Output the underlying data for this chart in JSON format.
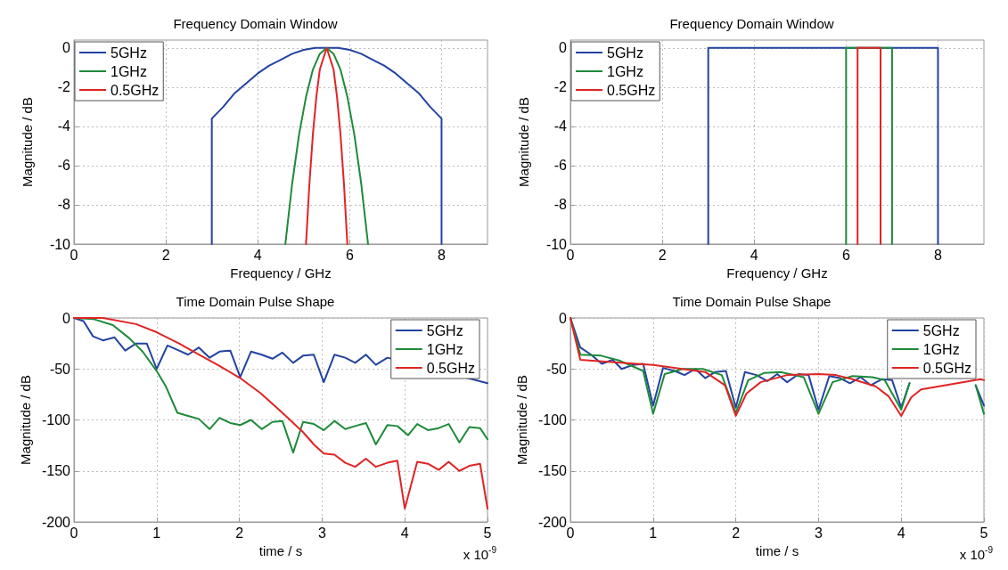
{
  "chart_data": [
    {
      "type": "line",
      "title": "Frequency Domain Window",
      "xlabel": "Frequency / GHz",
      "ylabel": "Magnitude / dB",
      "xlim": [
        0,
        9
      ],
      "xticks": [
        0,
        2,
        4,
        6,
        8
      ],
      "ylim": [
        -10,
        0.4
      ],
      "yticks": [
        -10,
        -8,
        -6,
        -4,
        -2,
        0
      ],
      "grid": true,
      "legend": "top left",
      "marker": "none",
      "line_style": "solid",
      "series": [
        {
          "name": "5GHz",
          "color": "#2343a0",
          "x": [
            3,
            3,
            3.25,
            3.5,
            3.75,
            4,
            4.25,
            4.5,
            4.75,
            5,
            5.25,
            5.5,
            5.75,
            6,
            6.25,
            6.5,
            6.75,
            7,
            7.25,
            7.5,
            7.75,
            8,
            8
          ],
          "values": [
            -10,
            -3.6,
            -3.0,
            -2.3,
            -1.8,
            -1.3,
            -0.9,
            -0.6,
            -0.3,
            -0.1,
            0,
            0,
            0,
            -0.1,
            -0.3,
            -0.6,
            -0.9,
            -1.3,
            -1.8,
            -2.3,
            -3.0,
            -3.6,
            -10
          ]
        },
        {
          "name": "1GHz",
          "color": "#1e8a3a",
          "x": [
            4.6,
            4.75,
            4.9,
            5.05,
            5.2,
            5.35,
            5.5,
            5.65,
            5.8,
            5.95,
            6.1,
            6.25,
            6.4
          ],
          "values": [
            -10,
            -6.9,
            -4.4,
            -2.5,
            -1.1,
            -0.3,
            0,
            -0.3,
            -1.1,
            -2.5,
            -4.4,
            -6.9,
            -10
          ]
        },
        {
          "name": "0.5GHz",
          "color": "#e02424",
          "x": [
            5.05,
            5.125,
            5.2,
            5.275,
            5.35,
            5.5,
            5.65,
            5.725,
            5.8,
            5.875,
            5.95
          ],
          "values": [
            -10,
            -6.9,
            -4.4,
            -2.5,
            -1.1,
            0,
            -1.1,
            -2.5,
            -4.4,
            -6.9,
            -10
          ]
        }
      ]
    },
    {
      "type": "line",
      "title": "Frequency Domain Window",
      "xlabel": "Frequency / GHz",
      "ylabel": "Magnitude / dB",
      "xlim": [
        0,
        9
      ],
      "xticks": [
        0,
        2,
        4,
        6,
        8
      ],
      "ylim": [
        -10,
        0.4
      ],
      "yticks": [
        -10,
        -8,
        -6,
        -4,
        -2,
        0
      ],
      "grid": true,
      "legend": "top left",
      "marker": "none",
      "line_style": "solid",
      "series": [
        {
          "name": "5GHz",
          "color": "#2343a0",
          "x": [
            3,
            3,
            8,
            8
          ],
          "values": [
            -10,
            0,
            0,
            -10
          ]
        },
        {
          "name": "1GHz",
          "color": "#1e8a3a",
          "x": [
            6,
            6,
            7,
            7
          ],
          "values": [
            -10,
            0,
            0,
            -10
          ]
        },
        {
          "name": "0.5GHz",
          "color": "#e02424",
          "x": [
            6.25,
            6.25,
            6.75,
            6.75
          ],
          "values": [
            -10,
            0,
            0,
            -10
          ]
        }
      ]
    },
    {
      "type": "line",
      "title": "Time Domain Pulse Shape",
      "xlabel": "time / s",
      "ylabel": "Magnitude / dB",
      "annotations": [
        "x 10$^{-9}$"
      ],
      "xlim": [
        0,
        5
      ],
      "xticks": [
        0,
        1,
        2,
        3,
        4,
        5
      ],
      "ylim": [
        -200,
        0
      ],
      "yticks": [
        -200,
        -150,
        -100,
        -50,
        0
      ],
      "grid": true,
      "legend": "top right",
      "marker": "none",
      "line_style": "solid",
      "series": [
        {
          "name": "5GHz",
          "color": "#2343a0",
          "x": [
            0,
            0.115,
            0.23,
            0.35,
            0.49,
            0.62,
            0.75,
            0.88,
            1.0,
            1.13,
            1.27,
            1.38,
            1.51,
            1.64,
            1.76,
            1.89,
            2.01,
            2.14,
            2.27,
            2.4,
            2.52,
            2.65,
            2.77,
            2.9,
            3.02,
            3.15,
            3.28,
            3.4,
            3.53,
            3.65,
            3.79,
            5
          ],
          "values": [
            0,
            -3,
            -18,
            -22,
            -19,
            -32,
            -25,
            -25,
            -50,
            -27,
            -32,
            -36,
            -29,
            -39,
            -33,
            -32,
            -58,
            -33,
            -36,
            -40,
            -34,
            -44,
            -37,
            -36,
            -63,
            -36,
            -39,
            -44,
            -36,
            -46,
            -39,
            -64
          ]
        },
        {
          "name": "1GHz",
          "color": "#1e8a3a",
          "x": [
            0,
            0.23,
            0.47,
            0.67,
            0.83,
            1.0,
            1.11,
            1.25,
            1.38,
            1.51,
            1.64,
            1.76,
            1.89,
            2.01,
            2.14,
            2.27,
            2.4,
            2.52,
            2.65,
            2.77,
            2.9,
            3.02,
            3.15,
            3.28,
            3.4,
            3.53,
            3.65,
            3.79,
            3.91,
            4.04,
            4.15,
            4.28,
            4.41,
            4.53,
            4.66,
            4.78,
            4.91,
            5
          ],
          "values": [
            0,
            -1,
            -7,
            -20,
            -33,
            -52,
            -67,
            -93,
            -96,
            -99,
            -109,
            -98,
            -103,
            -105,
            -100,
            -109,
            -102,
            -101,
            -132,
            -102,
            -104,
            -110,
            -101,
            -109,
            -106,
            -103,
            -124,
            -105,
            -106,
            -115,
            -104,
            -110,
            -108,
            -104,
            -122,
            -107,
            -108,
            -119
          ]
        },
        {
          "name": "0.5GHz",
          "color": "#e02424",
          "x": [
            0,
            0.35,
            0.75,
            1.0,
            1.27,
            1.51,
            1.76,
            2.01,
            2.26,
            2.52,
            2.77,
            2.9,
            3.02,
            3.15,
            3.28,
            3.4,
            3.53,
            3.65,
            3.79,
            3.91,
            4.0,
            4.15,
            4.28,
            4.41,
            4.53,
            4.66,
            4.78,
            4.91,
            5
          ],
          "values": [
            0,
            0,
            -6,
            -14,
            -25,
            -36,
            -47,
            -59,
            -74,
            -93,
            -112,
            -124,
            -133,
            -134,
            -142,
            -146,
            -138,
            -146,
            -142,
            -140,
            -187,
            -141,
            -143,
            -149,
            -141,
            -150,
            -145,
            -143,
            -187
          ]
        }
      ]
    },
    {
      "type": "line",
      "title": "Time Domain Pulse Shape",
      "xlabel": "time / s",
      "ylabel": "Magnitude / dB",
      "annotations": [
        "x 10$^{-9}$"
      ],
      "xlim": [
        0,
        5
      ],
      "xticks": [
        0,
        1,
        2,
        3,
        4,
        5
      ],
      "ylim": [
        -200,
        0
      ],
      "yticks": [
        -200,
        -150,
        -100,
        -50,
        0
      ],
      "grid": true,
      "legend": "top right",
      "marker": "none",
      "line_style": "solid",
      "series": [
        {
          "name": "5GHz",
          "color": "#2343a0",
          "x": [
            0,
            0.12,
            0.25,
            0.38,
            0.51,
            0.62,
            0.76,
            0.88,
            1.0,
            1.12,
            1.26,
            1.38,
            1.51,
            1.63,
            1.75,
            1.88,
            2.0,
            2.11,
            2.25,
            2.38,
            2.5,
            2.62,
            2.76,
            2.88,
            3.0,
            3.13,
            3.26,
            3.38,
            3.51,
            3.63,
            3.77,
            3.89,
            4.0,
            4.1,
            4.5,
            4.9,
            5
          ],
          "values": [
            0,
            -29,
            -36,
            -45,
            -41,
            -50,
            -46,
            -45,
            -86,
            -49,
            -52,
            -56,
            -50,
            -59,
            -53,
            -52,
            -88,
            -53,
            -56,
            -62,
            -55,
            -63,
            -55,
            -56,
            -90,
            -57,
            -59,
            -64,
            -58,
            -66,
            -60,
            -61,
            -88,
            -64,
            null,
            -66,
            -86
          ]
        },
        {
          "name": "1GHz",
          "color": "#1e8a3a",
          "x": [
            0,
            0.12,
            0.37,
            0.6,
            0.88,
            1.0,
            1.14,
            1.36,
            1.6,
            1.83,
            2.0,
            2.15,
            2.34,
            2.54,
            2.82,
            3.0,
            3.17,
            3.41,
            3.65,
            3.8,
            4.0,
            4.1,
            4.5,
            4.9,
            5
          ],
          "values": [
            0,
            -36,
            -37,
            -42,
            -52,
            -94,
            -55,
            -50,
            -50,
            -56,
            -93,
            -61,
            -54,
            -53,
            -58,
            -94,
            -63,
            -57,
            -58,
            -61,
            -90,
            -64,
            null,
            -66,
            -94
          ]
        },
        {
          "name": "0.5GHz",
          "color": "#e02424",
          "x": [
            0,
            0.12,
            0.45,
            1.0,
            1.63,
            1.87,
            2.0,
            2.13,
            2.3,
            2.62,
            3.0,
            3.21,
            3.41,
            3.69,
            3.85,
            4.0,
            4.12,
            4.24,
            4.96,
            5
          ],
          "values": [
            0,
            -41,
            -43,
            -46,
            -53,
            -66,
            -96,
            -74,
            -63,
            -56,
            -55,
            -56,
            -60,
            -67,
            -77,
            -96,
            -78,
            -70,
            -60,
            -61
          ]
        }
      ]
    }
  ]
}
